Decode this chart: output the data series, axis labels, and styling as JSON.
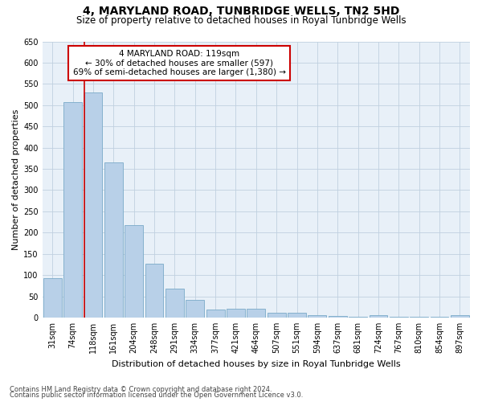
{
  "title": "4, MARYLAND ROAD, TUNBRIDGE WELLS, TN2 5HD",
  "subtitle": "Size of property relative to detached houses in Royal Tunbridge Wells",
  "xlabel": "Distribution of detached houses by size in Royal Tunbridge Wells",
  "ylabel": "Number of detached properties",
  "footnote1": "Contains HM Land Registry data © Crown copyright and database right 2024.",
  "footnote2": "Contains public sector information licensed under the Open Government Licence v3.0.",
  "bar_labels": [
    "31sqm",
    "74sqm",
    "118sqm",
    "161sqm",
    "204sqm",
    "248sqm",
    "291sqm",
    "334sqm",
    "377sqm",
    "421sqm",
    "464sqm",
    "507sqm",
    "551sqm",
    "594sqm",
    "637sqm",
    "681sqm",
    "724sqm",
    "767sqm",
    "810sqm",
    "854sqm",
    "897sqm"
  ],
  "bar_values": [
    93,
    507,
    530,
    365,
    217,
    126,
    68,
    42,
    18,
    20,
    20,
    12,
    12,
    5,
    3,
    1,
    5,
    1,
    1,
    1,
    5
  ],
  "bar_color": "#b8d0e8",
  "bar_edge_color": "#7aaac8",
  "highlight_bar_index": 2,
  "highlight_line_color": "#cc0000",
  "annotation_text": "4 MARYLAND ROAD: 119sqm\n← 30% of detached houses are smaller (597)\n69% of semi-detached houses are larger (1,380) →",
  "annotation_box_color": "#ffffff",
  "annotation_box_edge": "#cc0000",
  "ylim": [
    0,
    650
  ],
  "yticks": [
    0,
    50,
    100,
    150,
    200,
    250,
    300,
    350,
    400,
    450,
    500,
    550,
    600,
    650
  ],
  "background_color": "#ffffff",
  "axes_bg_color": "#e8f0f8",
  "grid_color": "#c0d0e0",
  "title_fontsize": 10,
  "subtitle_fontsize": 8.5,
  "xlabel_fontsize": 8,
  "ylabel_fontsize": 8,
  "tick_fontsize": 7,
  "annotation_fontsize": 7.5,
  "footnote_fontsize": 6
}
